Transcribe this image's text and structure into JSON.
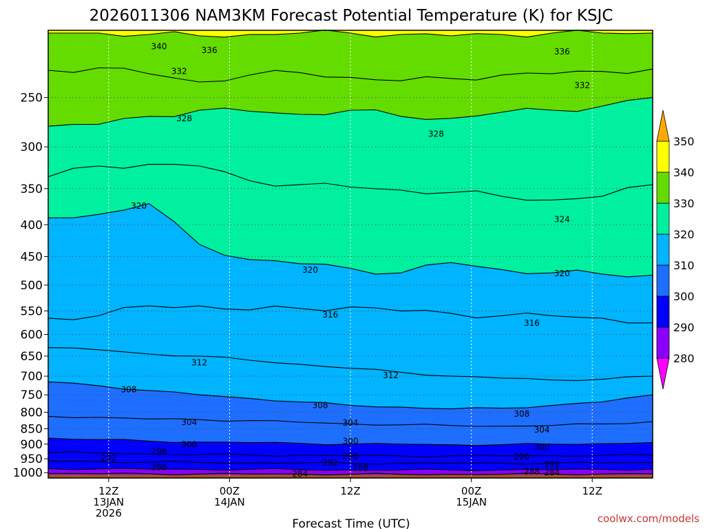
{
  "chart_data": {
    "type": "filled-contour",
    "title": "2026011306 NAM3KM Forecast Potential Temperature (K) for KSJC",
    "xlabel": "Forecast Time (UTC)",
    "ylabel": "",
    "credit": "coolwx.com/models",
    "y_axis": {
      "scale": "log-pressure",
      "range_hPa": [
        1020,
        195
      ],
      "ticks": [
        "250",
        "300",
        "350",
        "400",
        "450",
        "500",
        "550",
        "600",
        "650",
        "700",
        "750",
        "800",
        "850",
        "900",
        "950",
        "1000"
      ],
      "grid": true
    },
    "x_axis": {
      "range": [
        "2026-01-13T06Z",
        "2026-01-15T18Z"
      ],
      "ticks": [
        {
          "time": "2026-01-13T12Z",
          "lines": [
            "12Z",
            "13JAN",
            "2026"
          ]
        },
        {
          "time": "2026-01-14T00Z",
          "lines": [
            "00Z",
            "14JAN"
          ]
        },
        {
          "time": "2026-01-14T12Z",
          "lines": [
            "12Z"
          ]
        },
        {
          "time": "2026-01-15T00Z",
          "lines": [
            "00Z",
            "15JAN"
          ]
        },
        {
          "time": "2026-01-15T12Z",
          "lines": [
            "12Z"
          ]
        }
      ],
      "grid": true
    },
    "colorbar": {
      "levels": [
        280,
        290,
        300,
        310,
        320,
        330,
        340,
        350
      ],
      "colors": [
        "#ff00ff",
        "#8a00ff",
        "#0000ff",
        "#1e6eff",
        "#00b4ff",
        "#00f0a0",
        "#64dc00",
        "#ffff00",
        "#ffaa00"
      ]
    },
    "contour_interval_K": 4,
    "contours": [
      {
        "theta": 336,
        "pressure_hPa": [
          197,
          197,
          198,
          199,
          198,
          197,
          197,
          198,
          199,
          198,
          197,
          197,
          197
        ]
      },
      {
        "theta": 332,
        "pressure_hPa": [
          226,
          224,
          229,
          236,
          230,
          228,
          232,
          235,
          233,
          230,
          229,
          227,
          225
        ]
      },
      {
        "theta": 328,
        "pressure_hPa": [
          278,
          276,
          268,
          262,
          263,
          266,
          262,
          268,
          270,
          264,
          262,
          258,
          250
        ]
      },
      {
        "theta": 324,
        "pressure_hPa": [
          335,
          322,
          320,
          322,
          340,
          345,
          348,
          352,
          355,
          360,
          365,
          360,
          345
        ]
      },
      {
        "theta": 320,
        "pressure_hPa": [
          390,
          385,
          370,
          430,
          455,
          462,
          470,
          478,
          460,
          472,
          478,
          480,
          482
        ]
      },
      {
        "theta": 316,
        "pressure_hPa": [
          565,
          560,
          540,
          540,
          548,
          545,
          542,
          550,
          555,
          560,
          560,
          565,
          575
        ]
      },
      {
        "theta": 312,
        "pressure_hPa": [
          630,
          635,
          645,
          650,
          660,
          670,
          680,
          690,
          700,
          705,
          710,
          708,
          700
        ]
      },
      {
        "theta": 308,
        "pressure_hPa": [
          715,
          725,
          738,
          750,
          760,
          770,
          780,
          785,
          790,
          788,
          780,
          770,
          750
        ]
      },
      {
        "theta": 304,
        "pressure_hPa": [
          812,
          815,
          820,
          822,
          825,
          830,
          835,
          838,
          840,
          842,
          840,
          835,
          828
        ]
      },
      {
        "theta": 300,
        "pressure_hPa": [
          880,
          885,
          890,
          893,
          895,
          897,
          900,
          900,
          902,
          902,
          900,
          898,
          895
        ]
      },
      {
        "theta": 296,
        "pressure_hPa": [
          928,
          930,
          933,
          935,
          937,
          938,
          939,
          940,
          940,
          940,
          939,
          938,
          937
        ]
      },
      {
        "theta": 292,
        "pressure_hPa": [
          958,
          960,
          962,
          963,
          964,
          965,
          966,
          966,
          966,
          966,
          965,
          964,
          963
        ]
      },
      {
        "theta": 288,
        "pressure_hPa": [
          985,
          986,
          987,
          988,
          988,
          989,
          990,
          990,
          990,
          990,
          989,
          988,
          987
        ]
      },
      {
        "theta": 284,
        "pressure_hPa": [
          1003,
          1004,
          1004,
          1005,
          1005,
          1005,
          1006,
          1006,
          1006,
          1006,
          1005,
          1005,
          1004
        ]
      }
    ],
    "contour_times_hours_from_start": [
      0,
      5,
      10,
      15,
      20,
      25,
      30,
      35,
      40,
      45,
      50,
      55,
      60
    ],
    "contour_labels": [
      {
        "text": "340",
        "hour": 11,
        "pressure_hPa": 207
      },
      {
        "text": "336",
        "hour": 16,
        "pressure_hPa": 210
      },
      {
        "text": "336",
        "hour": 51,
        "pressure_hPa": 211
      },
      {
        "text": "332",
        "hour": 13,
        "pressure_hPa": 227
      },
      {
        "text": "332",
        "hour": 53,
        "pressure_hPa": 239
      },
      {
        "text": "328",
        "hour": 13.5,
        "pressure_hPa": 270
      },
      {
        "text": "328",
        "hour": 38.5,
        "pressure_hPa": 286
      },
      {
        "text": "324",
        "hour": 51,
        "pressure_hPa": 392
      },
      {
        "text": "320",
        "hour": 9,
        "pressure_hPa": 373
      },
      {
        "text": "320",
        "hour": 26,
        "pressure_hPa": 473
      },
      {
        "text": "320",
        "hour": 51,
        "pressure_hPa": 479
      },
      {
        "text": "316",
        "hour": 28,
        "pressure_hPa": 558
      },
      {
        "text": "316",
        "hour": 48,
        "pressure_hPa": 575
      },
      {
        "text": "312",
        "hour": 15,
        "pressure_hPa": 666
      },
      {
        "text": "312",
        "hour": 34,
        "pressure_hPa": 698
      },
      {
        "text": "308",
        "hour": 8,
        "pressure_hPa": 735
      },
      {
        "text": "308",
        "hour": 27,
        "pressure_hPa": 780
      },
      {
        "text": "308",
        "hour": 47,
        "pressure_hPa": 805
      },
      {
        "text": "304",
        "hour": 14,
        "pressure_hPa": 830
      },
      {
        "text": "304",
        "hour": 30,
        "pressure_hPa": 832
      },
      {
        "text": "304",
        "hour": 49,
        "pressure_hPa": 853
      },
      {
        "text": "300",
        "hour": 14,
        "pressure_hPa": 902
      },
      {
        "text": "300",
        "hour": 30,
        "pressure_hPa": 890
      },
      {
        "text": "300",
        "hour": 49,
        "pressure_hPa": 910
      },
      {
        "text": "296",
        "hour": 11,
        "pressure_hPa": 925
      },
      {
        "text": "296",
        "hour": 30,
        "pressure_hPa": 942
      },
      {
        "text": "296",
        "hour": 47,
        "pressure_hPa": 943
      },
      {
        "text": "292",
        "hour": 6,
        "pressure_hPa": 948
      },
      {
        "text": "292",
        "hour": 28,
        "pressure_hPa": 965
      },
      {
        "text": "292",
        "hour": 50,
        "pressure_hPa": 970
      },
      {
        "text": "288",
        "hour": 11,
        "pressure_hPa": 980
      },
      {
        "text": "288",
        "hour": 31,
        "pressure_hPa": 983
      },
      {
        "text": "288",
        "hour": 48,
        "pressure_hPa": 995
      },
      {
        "text": "284",
        "hour": 25,
        "pressure_hPa": 1004
      },
      {
        "text": "284",
        "hour": 50,
        "pressure_hPa": 1000
      }
    ]
  }
}
